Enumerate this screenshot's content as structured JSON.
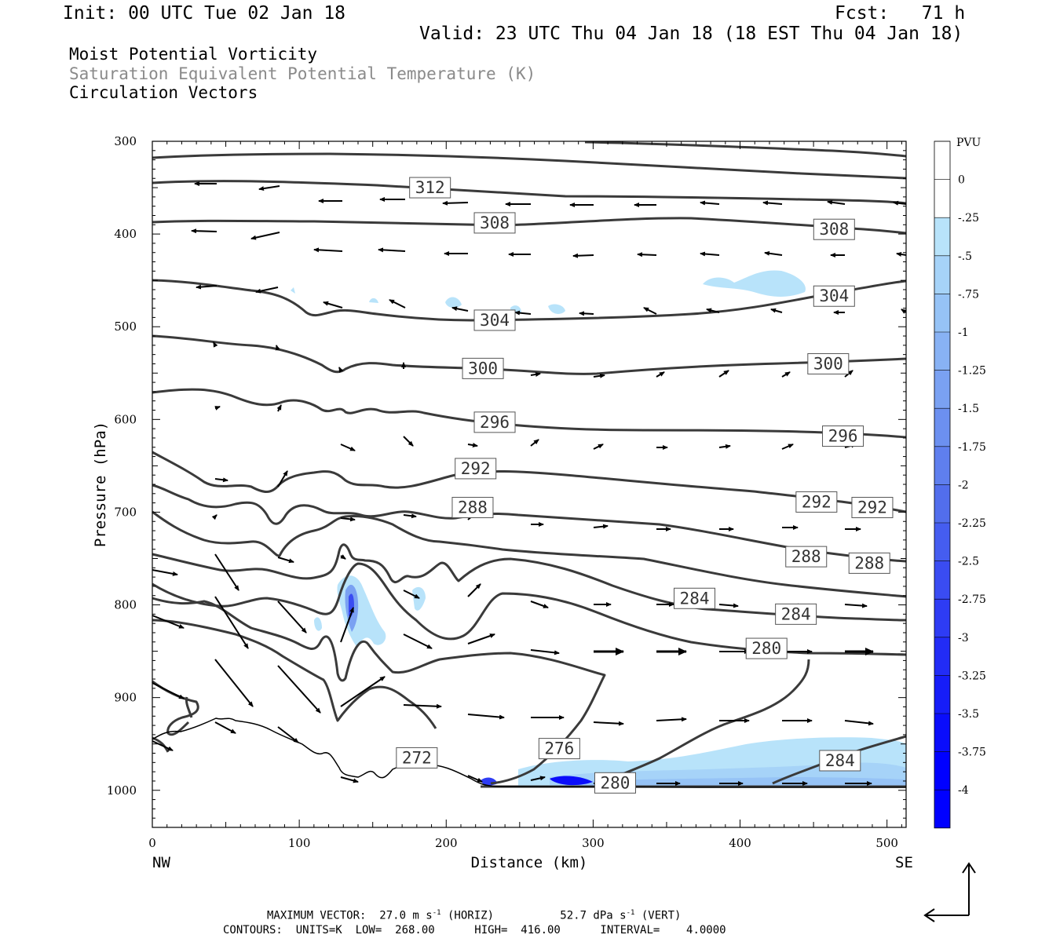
{
  "header": {
    "init": "Init: 00 UTC Tue 02 Jan 18",
    "fcst": "Fcst:   71 h",
    "valid": "Valid: 23 UTC Thu 04 Jan 18 (18 EST Thu 04 Jan 18)"
  },
  "fields": {
    "line1": "Moist Potential Vorticity",
    "line2": "Saturation Equivalent Potential Temperature (K)",
    "line3": "Circulation Vectors"
  },
  "footer": {
    "max_vector_prefix": "MAXIMUM VECTOR:  27.0 m s",
    "max_vector_mid": " (HORIZ)          52.7 dPa s",
    "max_vector_suffix": " (VERT)",
    "exponent": "-1",
    "contours": "CONTOURS:  UNITS=K  LOW=  268.00      HIGH=  416.00      INTERVAL=    4.0000"
  },
  "colors": {
    "contour": "#3a3a3a",
    "pv_scale": [
      "#ffffff",
      "#ffffff",
      "#b8e3fa",
      "#a6d3f8",
      "#96c3f6",
      "#88b2f4",
      "#7aa1f2",
      "#6c90f0",
      "#5f7fee",
      "#526eec",
      "#455df0",
      "#3a4cf2",
      "#2e3cf4",
      "#222cf6",
      "#161df8",
      "#0a0dfb",
      "#0000ff"
    ]
  },
  "chart_data": {
    "type": "cross-section",
    "xlabel": "Distance (km)",
    "ylabel": "Pressure (hPa)",
    "xlim": [
      0,
      513
    ],
    "ylim": [
      1040,
      300
    ],
    "x_ticks": [
      0,
      100,
      200,
      300,
      400,
      500
    ],
    "y_ticks": [
      300,
      400,
      500,
      600,
      700,
      800,
      900,
      1000
    ],
    "x_endpoint_labels": {
      "left": "NW",
      "right": "SE"
    },
    "colorbar": {
      "unit": "PVU",
      "labels": [
        "0",
        "-.25",
        "-.5",
        "-.75",
        "-1",
        "-1.25",
        "-1.5",
        "-1.75",
        "-2",
        "-2.25",
        "-2.5",
        "-2.75",
        "-3",
        "-3.25",
        "-3.5",
        "-3.75",
        "-4"
      ]
    },
    "contour_labels": [
      {
        "text": "312",
        "x": 189,
        "p": 350
      },
      {
        "text": "308",
        "x": 233,
        "p": 388
      },
      {
        "text": "308",
        "x": 464,
        "p": 395
      },
      {
        "text": "304",
        "x": 233,
        "p": 493
      },
      {
        "text": "304",
        "x": 464,
        "p": 467
      },
      {
        "text": "300",
        "x": 225,
        "p": 545
      },
      {
        "text": "300",
        "x": 460,
        "p": 540
      },
      {
        "text": "296",
        "x": 233,
        "p": 603
      },
      {
        "text": "296",
        "x": 470,
        "p": 618
      },
      {
        "text": "292",
        "x": 220,
        "p": 653
      },
      {
        "text": "292",
        "x": 452,
        "p": 689
      },
      {
        "text": "292",
        "x": 490,
        "p": 695
      },
      {
        "text": "288",
        "x": 218,
        "p": 695
      },
      {
        "text": "288",
        "x": 445,
        "p": 748
      },
      {
        "text": "288",
        "x": 488,
        "p": 755
      },
      {
        "text": "284",
        "x": 369,
        "p": 793
      },
      {
        "text": "284",
        "x": 438,
        "p": 810
      },
      {
        "text": "280",
        "x": 418,
        "p": 847
      },
      {
        "text": "280",
        "x": 315,
        "p": 992
      },
      {
        "text": "276",
        "x": 277,
        "p": 955
      },
      {
        "text": "272",
        "x": 180,
        "p": 965
      },
      {
        "text": "284",
        "x": 468,
        "p": 968
      }
    ]
  }
}
